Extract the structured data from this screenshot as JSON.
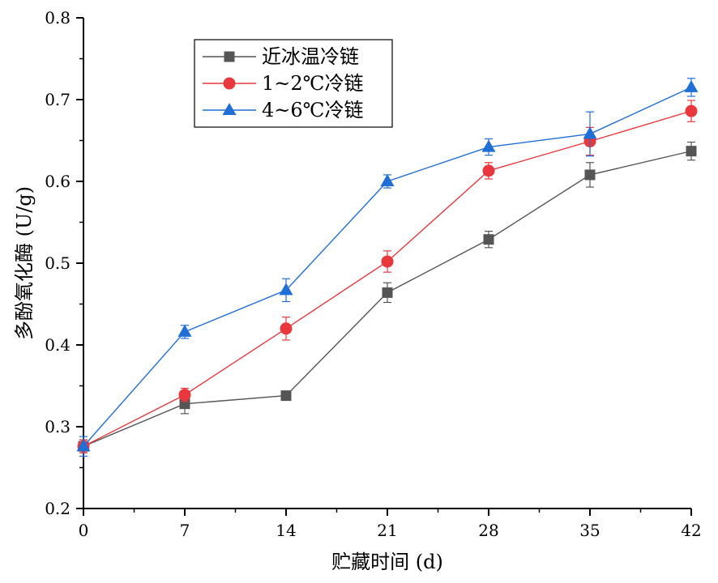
{
  "chart_data": {
    "type": "line",
    "xlabel": "贮藏时间 (d)",
    "ylabel": "多酚氧化酶 (U/g)",
    "x": [
      0,
      7,
      14,
      21,
      28,
      35,
      42
    ],
    "x_ticks": [
      "0",
      "7",
      "14",
      "21",
      "28",
      "35",
      "42"
    ],
    "xlim": [
      0,
      42
    ],
    "ylim": [
      0.2,
      0.8
    ],
    "y_ticks": [
      "0.2",
      "0.3",
      "0.4",
      "0.5",
      "0.6",
      "0.7",
      "0.8"
    ],
    "grid": false,
    "legend_position": "top-left",
    "series": [
      {
        "name": "近冰温冷链",
        "color": "#555555",
        "marker": "square",
        "values": [
          0.276,
          0.328,
          0.338,
          0.464,
          0.529,
          0.608,
          0.637
        ],
        "errors": [
          0.008,
          0.012,
          0.004,
          0.012,
          0.01,
          0.015,
          0.011
        ]
      },
      {
        "name": "1~2℃冷链",
        "color": "#e8383d",
        "marker": "circle",
        "values": [
          0.276,
          0.339,
          0.42,
          0.502,
          0.613,
          0.649,
          0.686
        ],
        "errors": [
          0.008,
          0.008,
          0.014,
          0.013,
          0.01,
          0.017,
          0.013
        ]
      },
      {
        "name": "4~6℃冷链",
        "color": "#1f6fd6",
        "marker": "triangle",
        "values": [
          0.276,
          0.416,
          0.467,
          0.6,
          0.642,
          0.658,
          0.715
        ],
        "errors": [
          0.012,
          0.008,
          0.014,
          0.008,
          0.01,
          0.027,
          0.011
        ]
      }
    ]
  }
}
